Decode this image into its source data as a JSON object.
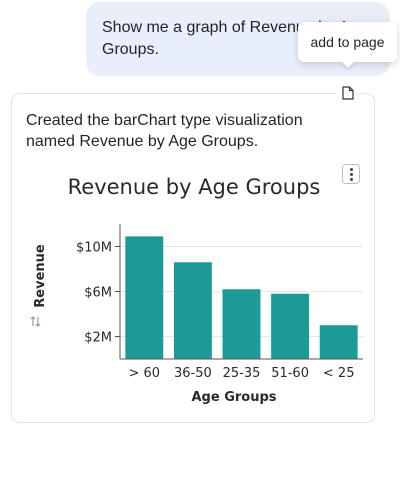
{
  "user_message": {
    "text": "Show me a graph of Revenue by Age Groups."
  },
  "tooltip": {
    "text": "add to page"
  },
  "icons": {
    "add_to_page": "page-icon",
    "menu": "kebab-menu-icon",
    "sort": "sort-arrows-icon"
  },
  "response": {
    "text": "Created the barChart type visualization named Revenue by Age Groups."
  },
  "colors": {
    "bar": "#1b9a96",
    "bubble": "#e9eefb"
  },
  "chart_data": {
    "type": "bar",
    "title": "Revenue by Age Groups",
    "xlabel": "Age Groups",
    "ylabel": "Revenue",
    "categories": [
      "> 60",
      "36-50",
      "25-35",
      "51-60",
      "< 25"
    ],
    "values": [
      10.9,
      8.6,
      6.2,
      5.8,
      3.0
    ],
    "yticks": [
      2,
      6,
      10
    ],
    "ytick_labels": [
      "$2M",
      "$6M",
      "$10M"
    ],
    "ylim": [
      0,
      12
    ],
    "grid": true
  }
}
